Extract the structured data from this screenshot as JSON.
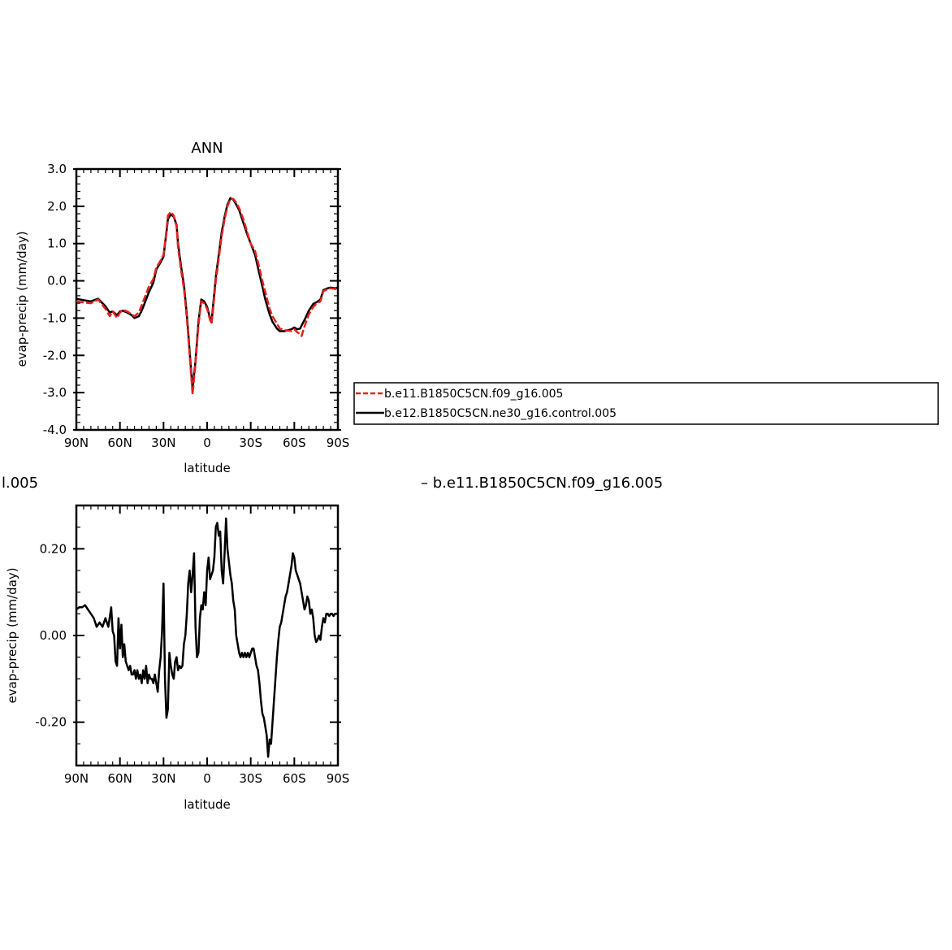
{
  "chart_data": [
    {
      "type": "line",
      "title": "ANN",
      "xlabel": "latitude",
      "ylabel": "evap-precip (mm/day)",
      "xlim": [
        -90,
        90
      ],
      "ylim": [
        -4.0,
        3.0
      ],
      "xticks": [
        {
          "value": -90,
          "label": "90N"
        },
        {
          "value": -60,
          "label": "60N"
        },
        {
          "value": -30,
          "label": "30N"
        },
        {
          "value": 0,
          "label": "0"
        },
        {
          "value": 30,
          "label": "30S"
        },
        {
          "value": 60,
          "label": "60S"
        },
        {
          "value": 90,
          "label": "90S"
        }
      ],
      "yticks": [
        {
          "value": 3.0,
          "label": "3.0"
        },
        {
          "value": 2.0,
          "label": "2.0"
        },
        {
          "value": 1.0,
          "label": "1.0"
        },
        {
          "value": 0.0,
          "label": "0.0"
        },
        {
          "value": -1.0,
          "label": "-1.0"
        },
        {
          "value": -2.0,
          "label": "-2.0"
        },
        {
          "value": -3.0,
          "label": "-3.0"
        },
        {
          "value": -4.0,
          "label": "-4.0"
        }
      ],
      "legend_position": "right",
      "series": [
        {
          "name": "b.e11.B1850C5CN.f09_g16.005",
          "color": "#e8201c",
          "dashed": true,
          "x": [
            -90,
            -85,
            -80,
            -75,
            -70,
            -67,
            -65,
            -62,
            -60,
            -58,
            -55,
            -52,
            -50,
            -47,
            -45,
            -42,
            -40,
            -37,
            -35,
            -32,
            -30,
            -28,
            -27,
            -25,
            -23,
            -21,
            -20,
            -18,
            -16,
            -14,
            -12,
            -10,
            -8,
            -6,
            -4,
            -2,
            0,
            2,
            3,
            4,
            6,
            8,
            10,
            12,
            14,
            16,
            18,
            20,
            22,
            25,
            28,
            30,
            33,
            35,
            38,
            40,
            43,
            45,
            48,
            50,
            53,
            55,
            58,
            60,
            62,
            64,
            65,
            67,
            70,
            73,
            75,
            78,
            80,
            83,
            85,
            88,
            90
          ],
          "y": [
            -0.55,
            -0.58,
            -0.6,
            -0.5,
            -0.75,
            -0.95,
            -0.82,
            -1.0,
            -0.85,
            -0.78,
            -0.82,
            -0.9,
            -0.95,
            -0.85,
            -0.65,
            -0.35,
            -0.15,
            0.05,
            0.35,
            0.55,
            0.7,
            1.35,
            1.75,
            1.85,
            1.75,
            1.45,
            0.9,
            0.3,
            -0.2,
            -1.0,
            -2.0,
            -3.05,
            -2.2,
            -1.2,
            -0.55,
            -0.6,
            -0.75,
            -1.05,
            -1.15,
            -0.8,
            0.0,
            0.6,
            1.2,
            1.65,
            2.0,
            2.2,
            2.2,
            2.1,
            1.95,
            1.65,
            1.25,
            1.0,
            0.8,
            0.5,
            0.0,
            -0.3,
            -0.75,
            -0.95,
            -1.15,
            -1.28,
            -1.32,
            -1.33,
            -1.35,
            -1.3,
            -1.38,
            -1.42,
            -1.48,
            -1.22,
            -0.9,
            -0.7,
            -0.62,
            -0.55,
            -0.28,
            -0.22,
            -0.2,
            -0.22,
            -0.2
          ]
        },
        {
          "name": "b.e12.B1850C5CN.ne30_g16.control.005",
          "color": "#000000",
          "dashed": false,
          "x": [
            -90,
            -85,
            -80,
            -75,
            -70,
            -67,
            -65,
            -62,
            -60,
            -58,
            -55,
            -52,
            -50,
            -47,
            -45,
            -42,
            -40,
            -37,
            -35,
            -32,
            -30,
            -28,
            -27,
            -25,
            -23,
            -21,
            -20,
            -18,
            -16,
            -14,
            -12,
            -10,
            -8,
            -6,
            -4,
            -2,
            0,
            2,
            3,
            4,
            6,
            8,
            10,
            12,
            14,
            16,
            18,
            20,
            22,
            25,
            28,
            30,
            33,
            35,
            38,
            40,
            43,
            45,
            48,
            50,
            53,
            55,
            58,
            60,
            62,
            64,
            65,
            67,
            70,
            73,
            75,
            78,
            80,
            83,
            85,
            88,
            90
          ],
          "y": [
            -0.48,
            -0.52,
            -0.55,
            -0.48,
            -0.68,
            -0.85,
            -0.82,
            -0.92,
            -0.82,
            -0.8,
            -0.85,
            -0.92,
            -1.0,
            -0.95,
            -0.8,
            -0.5,
            -0.3,
            -0.05,
            0.3,
            0.5,
            0.65,
            1.3,
            1.65,
            1.78,
            1.72,
            1.5,
            1.0,
            0.4,
            -0.1,
            -0.9,
            -1.9,
            -2.9,
            -2.15,
            -1.1,
            -0.5,
            -0.55,
            -0.7,
            -1.0,
            -1.12,
            -0.7,
            0.1,
            0.7,
            1.3,
            1.72,
            2.05,
            2.22,
            2.18,
            2.05,
            1.9,
            1.55,
            1.2,
            1.0,
            0.7,
            0.35,
            -0.15,
            -0.5,
            -0.9,
            -1.1,
            -1.28,
            -1.35,
            -1.35,
            -1.33,
            -1.3,
            -1.25,
            -1.3,
            -1.28,
            -1.2,
            -1.05,
            -0.8,
            -0.62,
            -0.58,
            -0.5,
            -0.25,
            -0.2,
            -0.18,
            -0.2,
            -0.18
          ]
        }
      ]
    },
    {
      "type": "line",
      "title": "",
      "xlabel": "latitude",
      "ylabel": "evap-precip (mm/day)",
      "xlim": [
        -90,
        90
      ],
      "ylim": [
        -0.3,
        0.3
      ],
      "xticks": [
        {
          "value": -90,
          "label": "90N"
        },
        {
          "value": -60,
          "label": "60N"
        },
        {
          "value": -30,
          "label": "30N"
        },
        {
          "value": 0,
          "label": "0"
        },
        {
          "value": 30,
          "label": "30S"
        },
        {
          "value": 60,
          "label": "60S"
        },
        {
          "value": 90,
          "label": "90S"
        }
      ],
      "yticks": [
        {
          "value": 0.2,
          "label": "0.20"
        },
        {
          "value": 0.0,
          "label": "0.00"
        },
        {
          "value": -0.2,
          "label": "-0.20"
        }
      ],
      "header_left": "l.005",
      "header_right": "– b.e11.B1850C5CN.f09_g16.005",
      "series": [
        {
          "color": "#000000",
          "dashed": false,
          "x": [
            -90,
            -88,
            -86,
            -84,
            -82,
            -80,
            -78,
            -76,
            -74,
            -72,
            -70,
            -68,
            -66,
            -65,
            -64,
            -63,
            -62,
            -61,
            -60,
            -59,
            -58,
            -57,
            -56,
            -55,
            -54,
            -53,
            -52,
            -51,
            -50,
            -49,
            -48,
            -47,
            -46,
            -45,
            -44,
            -43,
            -42,
            -41,
            -40,
            -39,
            -38,
            -37,
            -36,
            -35,
            -34,
            -33,
            -32,
            -31,
            -30,
            -29,
            -28,
            -27,
            -26,
            -25,
            -24,
            -23,
            -22,
            -21,
            -20,
            -19,
            -18,
            -17,
            -16,
            -15,
            -14,
            -13,
            -12,
            -11,
            -10,
            -9,
            -8,
            -7,
            -6,
            -5,
            -4,
            -3,
            -2,
            -1,
            0,
            1,
            2,
            3,
            4,
            5,
            6,
            7,
            8,
            9,
            10,
            11,
            12,
            13,
            14,
            15,
            16,
            17,
            18,
            19,
            20,
            21,
            22,
            23,
            24,
            25,
            26,
            27,
            28,
            29,
            30,
            31,
            32,
            33,
            34,
            35,
            36,
            37,
            38,
            39,
            40,
            41,
            42,
            43,
            44,
            45,
            46,
            47,
            48,
            49,
            50,
            51,
            52,
            53,
            54,
            55,
            56,
            57,
            58,
            59,
            60,
            61,
            62,
            63,
            64,
            65,
            66,
            67,
            68,
            69,
            70,
            71,
            72,
            73,
            74,
            75,
            76,
            77,
            78,
            79,
            80,
            81,
            82,
            83,
            84,
            85,
            86,
            87,
            88,
            89,
            90
          ],
          "y": [
            0.06,
            0.065,
            0.065,
            0.07,
            0.06,
            0.05,
            0.04,
            0.02,
            0.03,
            0.02,
            0.04,
            0.02,
            0.065,
            0.01,
            0.0,
            -0.06,
            -0.07,
            0.04,
            -0.03,
            0.025,
            -0.05,
            -0.02,
            -0.06,
            -0.07,
            -0.08,
            -0.07,
            -0.09,
            -0.09,
            -0.08,
            -0.1,
            -0.08,
            -0.1,
            -0.09,
            -0.11,
            -0.08,
            -0.1,
            -0.07,
            -0.11,
            -0.09,
            -0.1,
            -0.1,
            -0.11,
            -0.09,
            -0.11,
            -0.13,
            -0.08,
            -0.05,
            0.01,
            0.12,
            -0.1,
            -0.19,
            -0.17,
            -0.04,
            -0.07,
            -0.09,
            -0.1,
            -0.06,
            -0.05,
            -0.08,
            -0.07,
            -0.075,
            -0.07,
            -0.02,
            0.0,
            0.05,
            0.12,
            0.15,
            0.1,
            0.14,
            0.19,
            0.02,
            -0.05,
            -0.04,
            0.04,
            0.07,
            0.06,
            0.1,
            0.07,
            0.15,
            0.18,
            0.13,
            0.14,
            0.15,
            0.18,
            0.25,
            0.26,
            0.23,
            0.24,
            0.15,
            0.12,
            0.19,
            0.27,
            0.2,
            0.17,
            0.14,
            0.12,
            0.08,
            0.06,
            0.0,
            -0.02,
            -0.04,
            -0.05,
            -0.04,
            -0.05,
            -0.04,
            -0.05,
            -0.04,
            -0.05,
            -0.04,
            -0.03,
            -0.03,
            -0.05,
            -0.07,
            -0.08,
            -0.11,
            -0.15,
            -0.18,
            -0.19,
            -0.21,
            -0.23,
            -0.28,
            -0.24,
            -0.25,
            -0.2,
            -0.15,
            -0.1,
            -0.05,
            -0.01,
            0.02,
            0.03,
            0.05,
            0.07,
            0.09,
            0.1,
            0.12,
            0.14,
            0.16,
            0.19,
            0.18,
            0.15,
            0.14,
            0.13,
            0.12,
            0.1,
            0.08,
            0.06,
            0.07,
            0.09,
            0.08,
            0.05,
            0.06,
            0.04,
            0.0,
            -0.015,
            -0.01,
            0.0,
            -0.01,
            0.02,
            0.04,
            0.03,
            0.05,
            0.05,
            0.045,
            0.05,
            0.05,
            0.045,
            0.05,
            0.05,
            0.05
          ]
        }
      ]
    }
  ]
}
